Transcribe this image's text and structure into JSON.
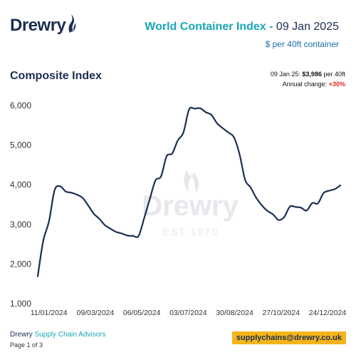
{
  "brand": {
    "name": "Drewry",
    "watermark_name": "Drewry",
    "watermark_est": "EST 1970"
  },
  "header": {
    "index_name": "World Container Index",
    "separator": "-",
    "date": "09 Jan 2025",
    "unit": "$ per 40ft container"
  },
  "section_title": "Composite Index",
  "info": {
    "date_prefix": "09 Jan 25:",
    "value": "$3,986",
    "value_suffix": "per 40ft",
    "change_label": "Annual change:",
    "change_value": "+30%"
  },
  "footer": {
    "company": "Drewry",
    "division": "Supply Chain Advisors",
    "page": "Page 1 of 3",
    "email": "supplychains@drewry.co.uk"
  },
  "colors": {
    "line": "#1b2f52",
    "accent": "#1aa7b5",
    "change": "#e0261f",
    "email_bg": "#f4b41a"
  },
  "chart_data": {
    "type": "line",
    "x_tick_labels": [
      "11/01/2024",
      "09/03/2024",
      "06/05/2024",
      "03/07/2024",
      "30/08/2024",
      "27/10/2024",
      "24/12/2024"
    ],
    "y_tick_labels": [
      "1,000",
      "2,000",
      "3,000",
      "4,000",
      "5,000",
      "6,000"
    ],
    "ylim": [
      1000,
      6000
    ],
    "x_start": "2023-12-28",
    "x_end": "2025-01-09",
    "grid": false,
    "series": [
      {
        "x": [
          "2023-12-28",
          "2024-01-04",
          "2024-01-11",
          "2024-01-18",
          "2024-01-25",
          "2024-02-01",
          "2024-02-08",
          "2024-02-15",
          "2024-02-22",
          "2024-02-29",
          "2024-03-07",
          "2024-03-14",
          "2024-03-21",
          "2024-03-28",
          "2024-04-04",
          "2024-04-11",
          "2024-04-18",
          "2024-04-25",
          "2024-05-02",
          "2024-05-09",
          "2024-05-16",
          "2024-05-23",
          "2024-05-30",
          "2024-06-06",
          "2024-06-13",
          "2024-06-20",
          "2024-06-27",
          "2024-07-04",
          "2024-07-11",
          "2024-07-18",
          "2024-07-25",
          "2024-08-01",
          "2024-08-08",
          "2024-08-15",
          "2024-08-22",
          "2024-08-29",
          "2024-09-05",
          "2024-09-12",
          "2024-09-19",
          "2024-09-26",
          "2024-10-03",
          "2024-10-10",
          "2024-10-17",
          "2024-10-24",
          "2024-10-31",
          "2024-11-07",
          "2024-11-14",
          "2024-11-21",
          "2024-11-28",
          "2024-12-05",
          "2024-12-12",
          "2024-12-19",
          "2024-12-26",
          "2025-01-02",
          "2025-01-09"
        ],
        "y": [
          1690,
          2600,
          3070,
          3860,
          3960,
          3830,
          3800,
          3750,
          3670,
          3480,
          3270,
          3140,
          2980,
          2890,
          2810,
          2770,
          2720,
          2710,
          2710,
          3160,
          3640,
          4110,
          4210,
          4720,
          4790,
          5120,
          5320,
          5900,
          5920,
          5930,
          5830,
          5760,
          5550,
          5430,
          5320,
          5200,
          4780,
          4130,
          3930,
          3670,
          3480,
          3340,
          3250,
          3110,
          3190,
          3450,
          3440,
          3420,
          3350,
          3540,
          3530,
          3790,
          3850,
          3890,
          3986
        ]
      }
    ]
  }
}
